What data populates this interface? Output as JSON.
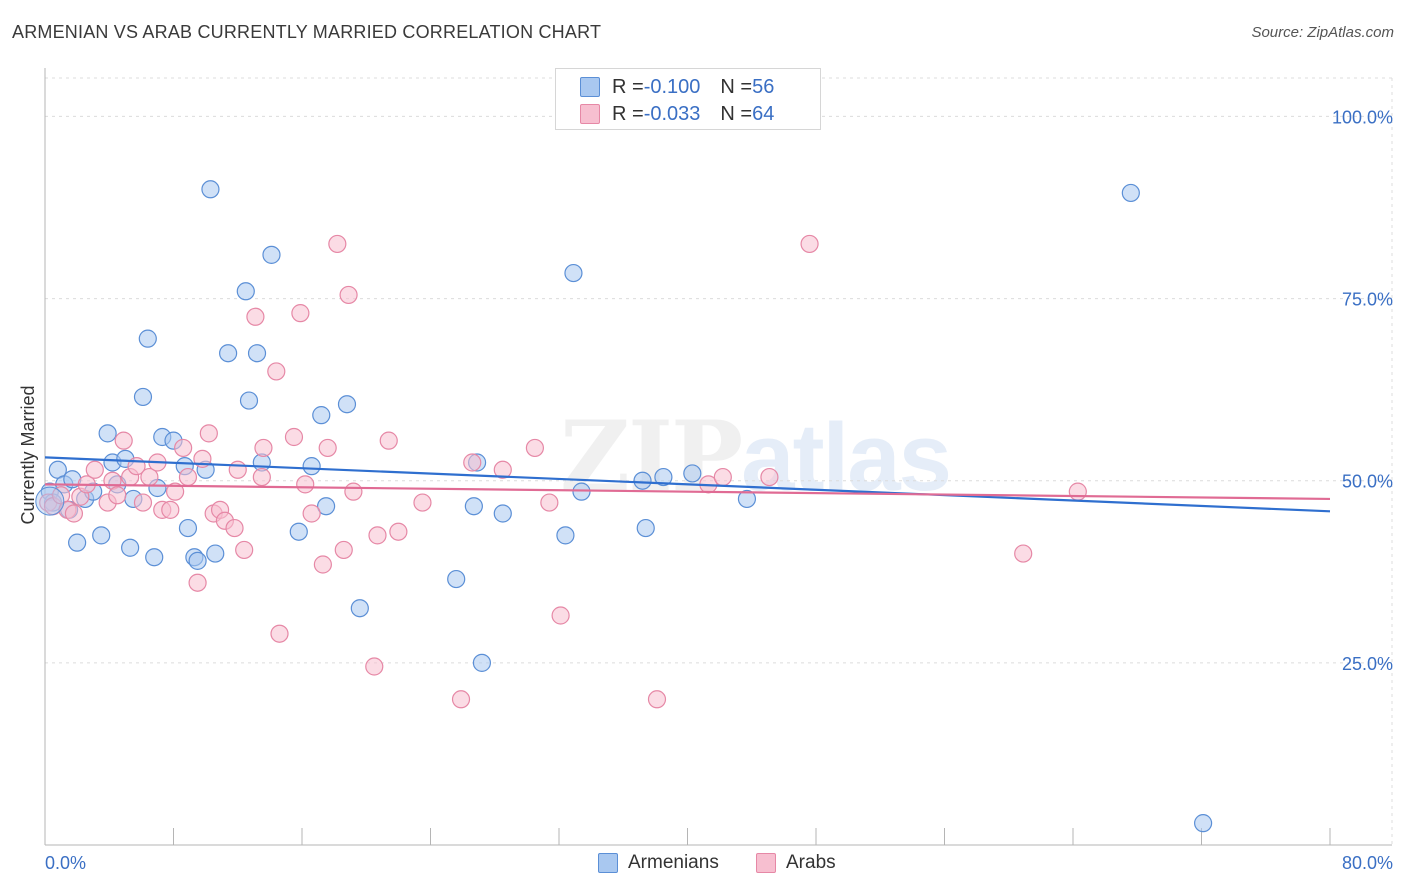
{
  "title": "ARMENIAN VS ARAB CURRENTLY MARRIED CORRELATION CHART",
  "source": "Source: ZipAtlas.com",
  "watermark": {
    "zip": "ZIP",
    "atlas": "atlas"
  },
  "legend": {
    "rows": [
      {
        "r_label": "R = ",
        "r_value": "-0.100",
        "n_label": "N = ",
        "n_value": "56"
      },
      {
        "r_label": "R = ",
        "r_value": "-0.033",
        "n_label": "N = ",
        "n_value": "64"
      }
    ]
  },
  "colors": {
    "armenians_fill": "#a9c8f0",
    "armenians_stroke": "#5b8fd6",
    "armenians_line": "#2f6fcf",
    "arabs_fill": "#f7bfd0",
    "arabs_stroke": "#e688a6",
    "arabs_line": "#e06b94",
    "axis_label": "#3a6fc4"
  },
  "chart_data": {
    "type": "scatter",
    "title": "ARMENIAN VS ARAB CURRENTLY MARRIED CORRELATION CHART",
    "xlabel": "",
    "ylabel": "Currently Married",
    "xlim": [
      0,
      80
    ],
    "ylim": [
      0,
      105
    ],
    "x_tick_labels": [
      "0.0%",
      "80.0%"
    ],
    "y_tick_labels": [
      "100.0%",
      "75.0%",
      "50.0%",
      "25.0%"
    ],
    "y_ticks": [
      100,
      75,
      50,
      25
    ],
    "grid": true,
    "legend_position": "top-center",
    "series": [
      {
        "name": "Armenians",
        "r": -0.1,
        "n": 56,
        "trend": {
          "x": [
            0,
            80
          ],
          "y": [
            53.2,
            45.8
          ]
        },
        "points": [
          [
            0.3,
            48.5
          ],
          [
            0.8,
            51.5
          ],
          [
            1.2,
            49.5
          ],
          [
            1.7,
            50.2
          ],
          [
            2.0,
            41.5
          ],
          [
            2.5,
            47.5
          ],
          [
            3.0,
            48.5
          ],
          [
            3.5,
            42.5
          ],
          [
            3.9,
            56.5
          ],
          [
            4.2,
            52.5
          ],
          [
            4.5,
            49.5
          ],
          [
            5.0,
            53.0
          ],
          [
            5.3,
            40.8
          ],
          [
            5.5,
            47.5
          ],
          [
            6.1,
            61.5
          ],
          [
            6.4,
            69.5
          ],
          [
            6.8,
            39.5
          ],
          [
            7.0,
            49.0
          ],
          [
            7.3,
            56.0
          ],
          [
            8.0,
            55.5
          ],
          [
            8.7,
            52.0
          ],
          [
            8.9,
            43.5
          ],
          [
            9.3,
            39.5
          ],
          [
            9.5,
            39.0
          ],
          [
            10.0,
            51.5
          ],
          [
            10.3,
            90.0
          ],
          [
            10.6,
            40.0
          ],
          [
            11.4,
            67.5
          ],
          [
            12.7,
            61.0
          ],
          [
            12.5,
            76.0
          ],
          [
            13.2,
            67.5
          ],
          [
            13.5,
            52.5
          ],
          [
            14.1,
            81.0
          ],
          [
            15.8,
            43.0
          ],
          [
            16.6,
            52.0
          ],
          [
            17.2,
            59.0
          ],
          [
            17.5,
            46.5
          ],
          [
            18.8,
            60.5
          ],
          [
            19.6,
            32.5
          ],
          [
            25.6,
            36.5
          ],
          [
            26.7,
            46.5
          ],
          [
            26.9,
            52.5
          ],
          [
            27.2,
            25.0
          ],
          [
            28.5,
            45.5
          ],
          [
            32.4,
            42.5
          ],
          [
            32.9,
            78.5
          ],
          [
            33.4,
            48.5
          ],
          [
            37.2,
            50.0
          ],
          [
            37.4,
            43.5
          ],
          [
            38.5,
            50.5
          ],
          [
            40.3,
            51.0
          ],
          [
            43.7,
            47.5
          ],
          [
            67.6,
            89.5
          ],
          [
            72.1,
            3.0
          ],
          [
            0.5,
            47.0
          ],
          [
            1.5,
            46.0
          ]
        ]
      },
      {
        "name": "Arabs",
        "r": -0.033,
        "n": 64,
        "trend": {
          "x": [
            0,
            80
          ],
          "y": [
            49.5,
            47.5
          ]
        },
        "points": [
          [
            0.2,
            47.0
          ],
          [
            0.5,
            46.5
          ],
          [
            1.0,
            48.0
          ],
          [
            1.4,
            46.0
          ],
          [
            2.2,
            47.8
          ],
          [
            2.6,
            49.5
          ],
          [
            3.1,
            51.5
          ],
          [
            3.9,
            47.0
          ],
          [
            4.2,
            50.0
          ],
          [
            4.9,
            55.5
          ],
          [
            5.3,
            50.5
          ],
          [
            5.7,
            52.0
          ],
          [
            6.1,
            47.0
          ],
          [
            6.5,
            50.5
          ],
          [
            7.0,
            52.5
          ],
          [
            7.3,
            46.0
          ],
          [
            7.8,
            46.0
          ],
          [
            8.1,
            48.5
          ],
          [
            8.6,
            54.5
          ],
          [
            8.9,
            50.5
          ],
          [
            9.5,
            36.0
          ],
          [
            9.8,
            53.0
          ],
          [
            10.2,
            56.5
          ],
          [
            10.5,
            45.5
          ],
          [
            10.9,
            46.0
          ],
          [
            11.2,
            44.5
          ],
          [
            11.8,
            43.5
          ],
          [
            12.0,
            51.5
          ],
          [
            12.4,
            40.5
          ],
          [
            13.1,
            72.5
          ],
          [
            13.5,
            50.5
          ],
          [
            13.6,
            54.5
          ],
          [
            14.4,
            65.0
          ],
          [
            14.6,
            29.0
          ],
          [
            15.5,
            56.0
          ],
          [
            15.9,
            73.0
          ],
          [
            16.2,
            49.5
          ],
          [
            16.6,
            45.5
          ],
          [
            17.3,
            38.5
          ],
          [
            17.6,
            54.5
          ],
          [
            18.2,
            82.5
          ],
          [
            18.6,
            40.5
          ],
          [
            18.9,
            75.5
          ],
          [
            19.2,
            48.5
          ],
          [
            20.5,
            24.5
          ],
          [
            20.7,
            42.5
          ],
          [
            21.4,
            55.5
          ],
          [
            22.0,
            43.0
          ],
          [
            23.5,
            47.0
          ],
          [
            25.9,
            20.0
          ],
          [
            26.6,
            52.5
          ],
          [
            28.5,
            51.5
          ],
          [
            30.5,
            54.5
          ],
          [
            31.4,
            47.0
          ],
          [
            32.1,
            31.5
          ],
          [
            38.1,
            20.0
          ],
          [
            41.3,
            49.5
          ],
          [
            42.2,
            50.5
          ],
          [
            45.1,
            50.5
          ],
          [
            47.6,
            82.5
          ],
          [
            64.3,
            48.5
          ],
          [
            60.9,
            40.0
          ],
          [
            1.8,
            45.5
          ],
          [
            4.5,
            48.0
          ]
        ]
      }
    ]
  }
}
